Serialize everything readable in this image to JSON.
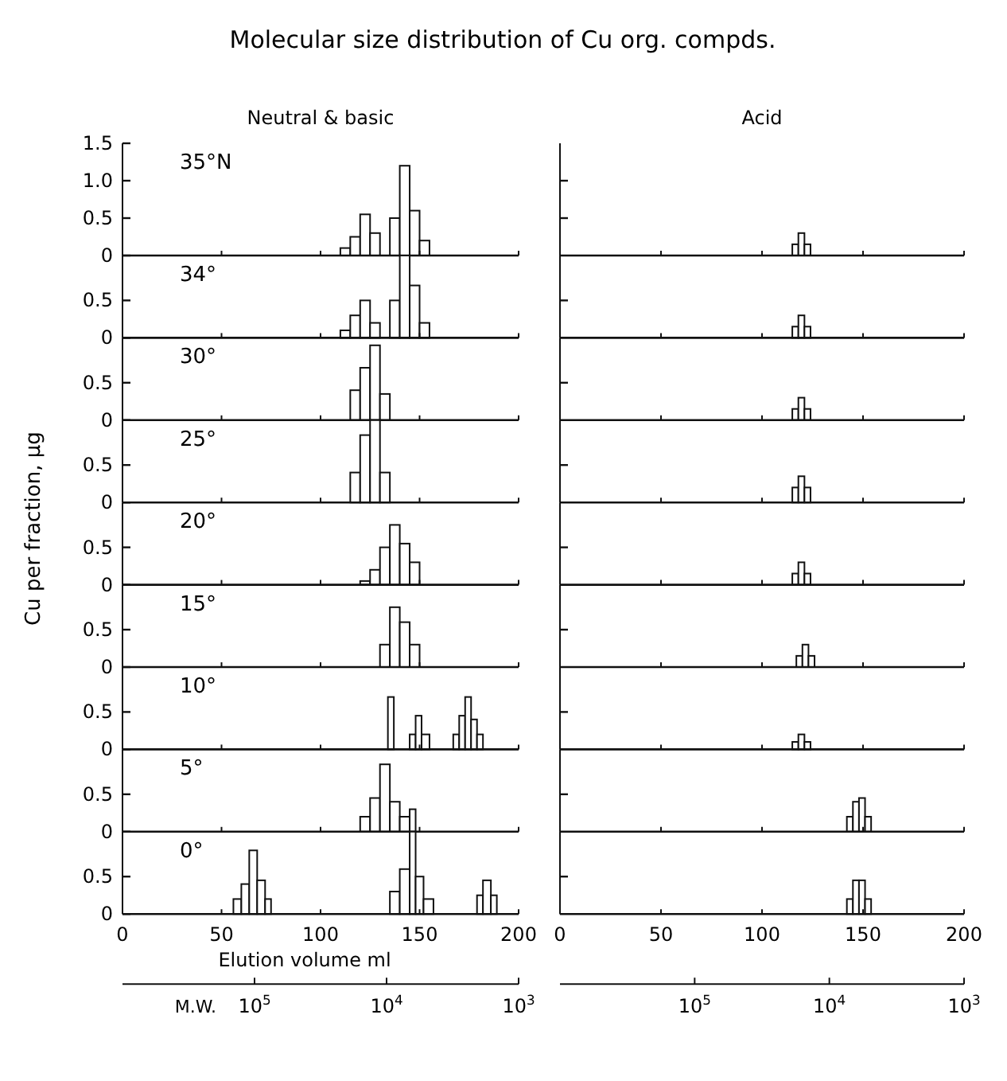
{
  "chart_data": [
    {
      "type": "histogram",
      "title": "Molecular size distribution of Cu org. compds.",
      "subtitle": "Neutral & basic",
      "annotations": [
        "35°N"
      ],
      "bins": [
        110,
        115,
        120,
        125,
        130,
        135,
        140,
        145,
        150,
        155
      ],
      "values": [
        0.1,
        0.25,
        0.55,
        0.3,
        0,
        0.5,
        1.2,
        0.6,
        0.2
      ],
      "color": "#111111",
      "xlim": [
        0,
        200
      ],
      "xticks": [
        0,
        50,
        100,
        150,
        200
      ],
      "ylim": [
        0,
        1.5
      ],
      "yticks": [
        0,
        0.5,
        {
          "value": 1,
          "label": "1.0"
        },
        1.5
      ],
      "tick_labels": "y"
    },
    {
      "type": "histogram",
      "title": "Acid",
      "bins": [
        115,
        118,
        121,
        124
      ],
      "values": [
        0.15,
        0.3,
        0.15
      ],
      "color": "#111111",
      "xlim": [
        0,
        200
      ],
      "xticks": [
        0,
        50,
        100,
        150,
        200
      ],
      "ylim": [
        0,
        1.5
      ],
      "yticks": [
        0.5,
        1
      ],
      "tick_labels": false
    },
    {
      "type": "histogram",
      "annotations": [
        "34°"
      ],
      "bins": [
        110,
        115,
        120,
        125,
        130,
        135,
        140,
        145,
        150,
        155
      ],
      "values": [
        0.1,
        0.3,
        0.5,
        0.2,
        0,
        0.5,
        1.1,
        0.7,
        0.2
      ],
      "color": "#111111",
      "xlim": [
        0,
        200
      ],
      "xticks": [
        0,
        50,
        100,
        150,
        200
      ],
      "ylim": [
        0,
        1.1
      ],
      "yticks": [
        0,
        0.5
      ],
      "tick_labels": "y"
    },
    {
      "type": "histogram",
      "bins": [
        115,
        118,
        121,
        124
      ],
      "values": [
        0.15,
        0.3,
        0.15
      ],
      "color": "#111111",
      "xlim": [
        0,
        200
      ],
      "xticks": [
        0,
        50,
        100,
        150,
        200
      ],
      "ylim": [
        0,
        1.1
      ],
      "yticks": [
        0.5
      ],
      "tick_labels": false
    },
    {
      "type": "histogram",
      "annotations": [
        "30°"
      ],
      "bins": [
        115,
        120,
        125,
        130,
        135
      ],
      "values": [
        0.4,
        0.7,
        1.0,
        0.35
      ],
      "color": "#111111",
      "xlim": [
        0,
        200
      ],
      "xticks": [
        0,
        50,
        100,
        150,
        200
      ],
      "ylim": [
        0,
        1.1
      ],
      "yticks": [
        0,
        0.5
      ],
      "tick_labels": "y"
    },
    {
      "type": "histogram",
      "bins": [
        115,
        118,
        121,
        124
      ],
      "values": [
        0.15,
        0.3,
        0.15
      ],
      "color": "#111111",
      "xlim": [
        0,
        200
      ],
      "xticks": [
        0,
        50,
        100,
        150,
        200
      ],
      "ylim": [
        0,
        1.1
      ],
      "yticks": [
        0.5
      ],
      "tick_labels": false
    },
    {
      "type": "histogram",
      "ylabel": "Cu per fraction, μg",
      "annotations": [
        "25°"
      ],
      "bins": [
        115,
        120,
        125,
        130,
        135
      ],
      "values": [
        0.4,
        0.9,
        1.1,
        0.4
      ],
      "color": "#111111",
      "xlim": [
        0,
        200
      ],
      "xticks": [
        0,
        50,
        100,
        150,
        200
      ],
      "ylim": [
        0,
        1.1
      ],
      "yticks": [
        0,
        0.5
      ],
      "tick_labels": "y"
    },
    {
      "type": "histogram",
      "bins": [
        115,
        118,
        121,
        124
      ],
      "values": [
        0.2,
        0.35,
        0.2
      ],
      "color": "#111111",
      "xlim": [
        0,
        200
      ],
      "xticks": [
        0,
        50,
        100,
        150,
        200
      ],
      "ylim": [
        0,
        1.1
      ],
      "yticks": [
        0.5
      ],
      "tick_labels": false
    },
    {
      "type": "histogram",
      "annotations": [
        "20°"
      ],
      "bins": [
        120,
        125,
        130,
        135,
        140,
        145,
        150
      ],
      "values": [
        0.05,
        0.2,
        0.5,
        0.8,
        0.55,
        0.3
      ],
      "color": "#111111",
      "xlim": [
        0,
        200
      ],
      "xticks": [
        0,
        50,
        100,
        150,
        200
      ],
      "ylim": [
        0,
        1.1
      ],
      "yticks": [
        0,
        0.5
      ],
      "tick_labels": "y"
    },
    {
      "type": "histogram",
      "bins": [
        115,
        118,
        121,
        124
      ],
      "values": [
        0.15,
        0.3,
        0.15
      ],
      "color": "#111111",
      "xlim": [
        0,
        200
      ],
      "xticks": [
        0,
        50,
        100,
        150,
        200
      ],
      "ylim": [
        0,
        1.1
      ],
      "yticks": [
        0.5
      ],
      "tick_labels": false
    },
    {
      "type": "histogram",
      "annotations": [
        "15°"
      ],
      "bins": [
        130,
        135,
        140,
        145,
        150
      ],
      "values": [
        0.3,
        0.8,
        0.6,
        0.3
      ],
      "color": "#111111",
      "xlim": [
        0,
        200
      ],
      "xticks": [
        0,
        50,
        100,
        150,
        200
      ],
      "ylim": [
        0,
        1.1
      ],
      "yticks": [
        0,
        0.5
      ],
      "tick_labels": "y"
    },
    {
      "type": "histogram",
      "bins": [
        117,
        120,
        123,
        126
      ],
      "values": [
        0.15,
        0.3,
        0.15
      ],
      "color": "#111111",
      "xlim": [
        0,
        200
      ],
      "xticks": [
        0,
        50,
        100,
        150,
        200
      ],
      "ylim": [
        0,
        1.1
      ],
      "yticks": [
        0.5
      ],
      "tick_labels": false
    },
    {
      "type": "histogram",
      "annotations": [
        "10°"
      ],
      "bins": [
        134,
        137,
        145,
        148,
        151,
        155,
        167,
        170,
        173,
        176,
        179,
        182
      ],
      "values": [
        0.7,
        0,
        0.2,
        0.45,
        0.2,
        0,
        0.2,
        0.45,
        0.7,
        0.4,
        0.2
      ],
      "color": "#111111",
      "xlim": [
        0,
        200
      ],
      "xticks": [
        0,
        50,
        100,
        150,
        200
      ],
      "ylim": [
        0,
        1.1
      ],
      "yticks": [
        0,
        0.5
      ],
      "tick_labels": "y"
    },
    {
      "type": "histogram",
      "bins": [
        115,
        118,
        121,
        124
      ],
      "values": [
        0.1,
        0.2,
        0.1
      ],
      "color": "#111111",
      "xlim": [
        0,
        200
      ],
      "xticks": [
        0,
        50,
        100,
        150,
        200
      ],
      "ylim": [
        0,
        1.1
      ],
      "yticks": [
        0.5
      ],
      "tick_labels": false
    },
    {
      "type": "histogram",
      "annotations": [
        "5°"
      ],
      "bins": [
        120,
        125,
        130,
        135,
        140,
        145,
        148
      ],
      "values": [
        0.2,
        0.45,
        0.9,
        0.4,
        0.2,
        0.3
      ],
      "color": "#111111",
      "xlim": [
        0,
        200
      ],
      "xticks": [
        0,
        50,
        100,
        150,
        200
      ],
      "ylim": [
        0,
        1.1
      ],
      "yticks": [
        0,
        0.5
      ],
      "tick_labels": "y"
    },
    {
      "type": "histogram",
      "bins": [
        142,
        145,
        148,
        151,
        154
      ],
      "values": [
        0.2,
        0.4,
        0.45,
        0.2
      ],
      "color": "#111111",
      "xlim": [
        0,
        200
      ],
      "xticks": [
        0,
        50,
        100,
        150,
        200
      ],
      "ylim": [
        0,
        1.1
      ],
      "yticks": [
        0.5
      ],
      "tick_labels": false
    },
    {
      "type": "histogram",
      "annotations": [
        "0°"
      ],
      "xlabel": "Elution volume  ml",
      "x2label": "M.W.",
      "bins": [
        56,
        60,
        64,
        68,
        72,
        75,
        135,
        140,
        145,
        148,
        152,
        157,
        179,
        182,
        186,
        189
      ],
      "values": [
        0.2,
        0.4,
        0.85,
        0.45,
        0.2,
        0,
        0.3,
        0.6,
        1.1,
        0.5,
        0.2,
        0,
        0.25,
        0.45,
        0.25
      ],
      "color": "#111111",
      "xlim": [
        0,
        200
      ],
      "xticks": [
        0,
        50,
        100,
        150,
        200
      ],
      "ylim": [
        0,
        1.1
      ],
      "yticks": [
        0,
        0.5
      ],
      "x2lim": [
        1000000,
        1000
      ],
      "x2ticks": [
        {
          "value": 100000,
          "label": "10$^{5}$"
        },
        {
          "value": 10000,
          "label": "10$^{4}$"
        },
        {
          "value": 1000,
          "label": "10$^{3}$"
        }
      ],
      "log": "x2"
    },
    {
      "type": "histogram",
      "bins": [
        142,
        145,
        148,
        151,
        154
      ],
      "values": [
        0.2,
        0.45,
        0.45,
        0.2
      ],
      "color": "#111111",
      "xlim": [
        0,
        200
      ],
      "xticks": [
        0,
        50,
        100,
        150,
        200
      ],
      "ylim": [
        0,
        1.1
      ],
      "yticks": [
        0.5
      ],
      "x2lim": [
        1000000,
        1000
      ],
      "x2ticks": [
        {
          "value": 100000,
          "label": "10$^{5}$"
        },
        {
          "value": 10000,
          "label": "10$^{4}$"
        },
        {
          "value": 1000,
          "label": "10$^{3}$"
        }
      ],
      "log": "x2",
      "tick_labels": "x"
    }
  ]
}
